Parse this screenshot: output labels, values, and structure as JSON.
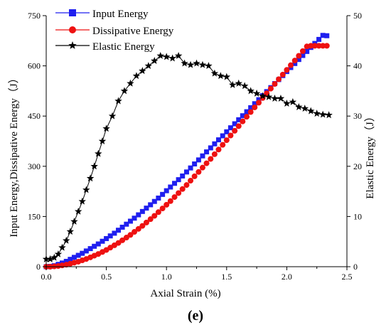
{
  "chart_data": {
    "type": "line",
    "panel_label": "(e)",
    "xlabel": "Axial Strain (%)",
    "ylabel_left": "Input Energy,Dissipative Energy（J）",
    "ylabel_right": "Elastic Energy（J）",
    "xlim": [
      0,
      2.5
    ],
    "ylim_left": [
      0,
      750
    ],
    "ylim_right": [
      0,
      50
    ],
    "x_ticks": [
      "0.0",
      "0.5",
      "1.0",
      "1.5",
      "2.0",
      "2.5"
    ],
    "y_left_ticks": [
      "0",
      "150",
      "300",
      "450",
      "600",
      "750"
    ],
    "y_right_ticks": [
      "0",
      "10",
      "20",
      "30",
      "40",
      "50"
    ],
    "legend_position": "top-left",
    "x": [
      0.0,
      0.033,
      0.067,
      0.1,
      0.133,
      0.167,
      0.2,
      0.233,
      0.267,
      0.3,
      0.333,
      0.367,
      0.4,
      0.433,
      0.467,
      0.5,
      0.533,
      0.567,
      0.6,
      0.633,
      0.667,
      0.7,
      0.733,
      0.767,
      0.8,
      0.833,
      0.867,
      0.9,
      0.933,
      0.967,
      1.0,
      1.033,
      1.067,
      1.1,
      1.133,
      1.167,
      1.2,
      1.233,
      1.267,
      1.3,
      1.333,
      1.367,
      1.4,
      1.433,
      1.467,
      1.5,
      1.533,
      1.567,
      1.6,
      1.633,
      1.667,
      1.7,
      1.733,
      1.767,
      1.8,
      1.833,
      1.867,
      1.9,
      1.933,
      1.967,
      2.0,
      2.033,
      2.067,
      2.1,
      2.133,
      2.167,
      2.2,
      2.233,
      2.267,
      2.3,
      2.333
    ],
    "series": [
      {
        "name": "Input Energy",
        "axis": "left",
        "color": "#1f1fef",
        "marker": "square",
        "values": [
          0,
          1,
          3,
          7,
          11,
          16,
          22,
          28,
          34,
          40,
          47,
          54,
          61,
          68,
          76,
          84,
          92,
          100,
          109,
          118,
          127,
          136,
          145,
          155,
          165,
          175,
          185,
          195,
          205,
          216,
          227,
          238,
          249,
          260,
          271,
          283,
          295,
          307,
          319,
          331,
          343,
          355,
          367,
          379,
          391,
          403,
          415,
          427,
          439,
          451,
          463,
          475,
          487,
          499,
          511,
          523,
          535,
          547,
          559,
          571,
          583,
          595,
          607,
          619,
          631,
          643,
          655,
          667,
          679,
          691,
          690
        ]
      },
      {
        "name": "Dissipative Energy",
        "axis": "left",
        "color": "#ee1111",
        "marker": "circle",
        "values": [
          0,
          0,
          1,
          2,
          4,
          6,
          9,
          12,
          15,
          19,
          23,
          28,
          33,
          38,
          44,
          50,
          57,
          64,
          71,
          79,
          87,
          95,
          104,
          113,
          122,
          132,
          142,
          152,
          163,
          174,
          185,
          196,
          208,
          220,
          232,
          244,
          257,
          270,
          283,
          296,
          309,
          322,
          336,
          350,
          364,
          378,
          392,
          406,
          420,
          434,
          448,
          462,
          476,
          490,
          504,
          518,
          532,
          546,
          560,
          574,
          588,
          602,
          616,
          630,
          644,
          658,
          660,
          660,
          660,
          660,
          660
        ]
      },
      {
        "name": "Elastic Energy",
        "axis": "right",
        "color": "#000000",
        "marker": "star",
        "x": [
          0.0,
          0.033,
          0.067,
          0.1,
          0.133,
          0.167,
          0.2,
          0.233,
          0.267,
          0.3,
          0.333,
          0.367,
          0.4,
          0.433,
          0.467,
          0.5,
          0.55,
          0.6,
          0.65,
          0.7,
          0.75,
          0.8,
          0.85,
          0.9,
          0.95,
          1.0,
          1.05,
          1.1,
          1.15,
          1.2,
          1.25,
          1.3,
          1.35,
          1.4,
          1.45,
          1.5,
          1.55,
          1.6,
          1.65,
          1.7,
          1.75,
          1.8,
          1.85,
          1.9,
          1.95,
          2.0,
          2.05,
          2.1,
          2.15,
          2.2,
          2.25,
          2.3,
          2.35
        ],
        "values": [
          1.5,
          1.5,
          1.8,
          2.5,
          3.8,
          5.2,
          7.0,
          9.0,
          11.0,
          13.0,
          15.3,
          17.6,
          20.0,
          22.5,
          25.0,
          27.5,
          30.0,
          33.0,
          35.0,
          36.5,
          38.0,
          39.0,
          40.0,
          41.0,
          42.0,
          41.8,
          41.5,
          42.0,
          40.5,
          40.2,
          40.5,
          40.2,
          40.0,
          38.5,
          38.0,
          37.8,
          36.2,
          36.5,
          36.0,
          35.0,
          34.5,
          34.0,
          33.8,
          33.5,
          33.5,
          32.5,
          32.8,
          31.8,
          31.5,
          31.0,
          30.5,
          30.3,
          30.2
        ]
      }
    ]
  }
}
